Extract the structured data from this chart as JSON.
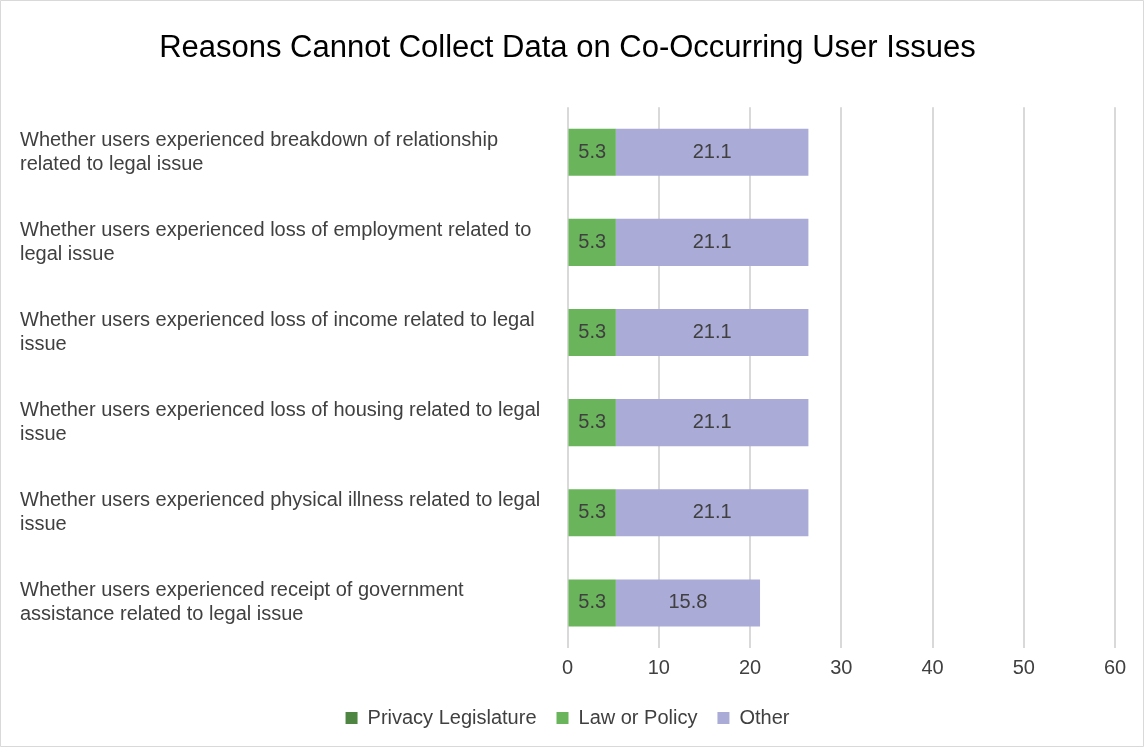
{
  "chart_data": {
    "type": "bar",
    "orientation": "horizontal",
    "stacked": true,
    "title": "Reasons Cannot Collect Data on Co-Occurring User Issues",
    "categories": [
      "Whether users experienced breakdown of relationship related to legal issue",
      "Whether users experienced loss of employment related to legal issue",
      "Whether users experienced loss of income related to legal issue",
      "Whether users experienced loss of housing related to legal issue",
      "Whether users experienced physical illness related to legal issue",
      "Whether users experienced receipt of government assistance related to legal issue"
    ],
    "series": [
      {
        "name": "Privacy Legislature",
        "color": "#4e8542",
        "values": [
          0,
          0,
          0,
          0,
          0,
          0
        ],
        "value_labels": [
          null,
          null,
          null,
          null,
          null,
          null
        ]
      },
      {
        "name": "Law or Policy",
        "color": "#6ab55b",
        "values": [
          5.3,
          5.3,
          5.3,
          5.3,
          5.3,
          5.3
        ],
        "value_labels": [
          "5.3",
          "5.3",
          "5.3",
          "5.3",
          "5.3",
          "5.3"
        ]
      },
      {
        "name": "Other",
        "color": "#aaabd7",
        "values": [
          21.1,
          21.1,
          21.1,
          21.1,
          21.1,
          15.8
        ],
        "value_labels": [
          "21.1",
          "21.1",
          "21.1",
          "21.1",
          "21.1",
          "15.8"
        ]
      }
    ],
    "xlim": [
      0,
      60
    ],
    "xticks": [
      0,
      10,
      20,
      30,
      40,
      50,
      60
    ],
    "grid": "x",
    "legend": "bottom"
  }
}
